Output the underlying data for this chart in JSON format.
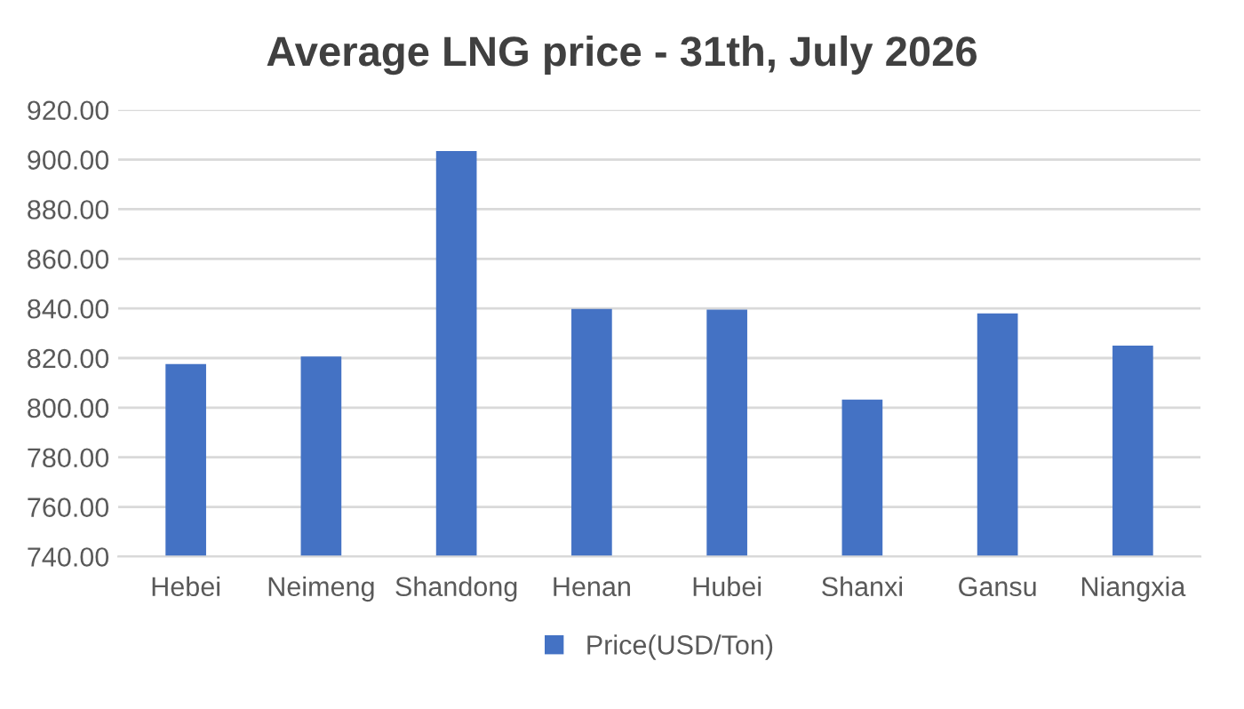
{
  "chart_data": {
    "type": "bar",
    "title": "Average LNG price - 31th, July 2026",
    "categories": [
      "Hebei",
      "Neimeng",
      "Shandong",
      "Henan",
      "Hubei",
      "Shanxi",
      "Gansu",
      "Niangxia"
    ],
    "series": [
      {
        "name": "Price(USD/Ton)",
        "color": "#4472c4",
        "values": [
          817.6,
          820.6,
          903.4,
          839.8,
          839.5,
          803.3,
          838.0,
          825.0
        ]
      }
    ],
    "ylim": [
      740,
      920
    ],
    "yticks": [
      {
        "value": 740,
        "label": "740.00"
      },
      {
        "value": 760,
        "label": "760.00"
      },
      {
        "value": 780,
        "label": "780.00"
      },
      {
        "value": 800,
        "label": "800.00"
      },
      {
        "value": 820,
        "label": "820.00"
      },
      {
        "value": 840,
        "label": "840.00"
      },
      {
        "value": 860,
        "label": "860.00"
      },
      {
        "value": 880,
        "label": "880.00"
      },
      {
        "value": 900,
        "label": "900.00"
      },
      {
        "value": 920,
        "label": "920.00"
      }
    ],
    "grid": "y",
    "legend": "bottom"
  }
}
